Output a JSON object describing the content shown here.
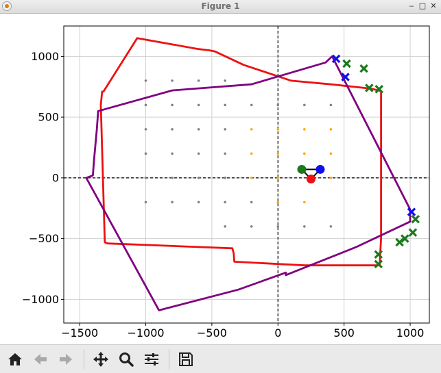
{
  "window": {
    "title": "Figure 1"
  },
  "toolbar": {
    "buttons": [
      {
        "name": "home-button",
        "icon": "home-icon"
      },
      {
        "name": "back-button",
        "icon": "arrow-left-icon"
      },
      {
        "name": "forward-button",
        "icon": "arrow-right-icon"
      },
      {
        "name": "pan-button",
        "icon": "move-icon"
      },
      {
        "name": "zoom-button",
        "icon": "magnifier-icon"
      },
      {
        "name": "configure-subplots-button",
        "icon": "sliders-icon"
      },
      {
        "name": "save-button",
        "icon": "floppy-disk-icon"
      }
    ]
  },
  "chart_data": {
    "type": "scatter",
    "title": "",
    "xlabel": "",
    "ylabel": "",
    "xlim": [
      -1620,
      1145
    ],
    "ylim": [
      -1195,
      1250
    ],
    "x_ticks": [
      -1500,
      -1000,
      -500,
      0,
      500,
      1000
    ],
    "y_ticks": [
      -1000,
      -500,
      0,
      500,
      1000
    ],
    "x_tick_labels": [
      "−1500",
      "−1000",
      "−500",
      "0",
      "500",
      "1000"
    ],
    "y_tick_labels": [
      "−1000",
      "−500",
      "0",
      "500",
      "1000"
    ],
    "grid": true,
    "reference_lines": {
      "x": 0,
      "y": 0,
      "style": "dashed",
      "color": "#000000"
    },
    "colors": {
      "red_path": "#ee1111",
      "purple_path": "#800080",
      "green_marker": "#1a7a1a",
      "blue_marker": "#1010ee",
      "grid_dots": "#808080",
      "orange_dots": "#ffa500"
    },
    "series": [
      {
        "style": "line",
        "color": "#ee1111",
        "points": [
          [
            -1065,
            1150
          ],
          [
            -600,
            1060
          ],
          [
            -520,
            1050
          ],
          [
            -475,
            1040
          ],
          [
            -260,
            930
          ],
          [
            100,
            800
          ],
          [
            400,
            770
          ],
          [
            700,
            735
          ],
          [
            780,
            715
          ],
          [
            780,
            -500
          ],
          [
            770,
            -700
          ],
          [
            770,
            -720
          ],
          [
            200,
            -720
          ],
          [
            -330,
            -690
          ],
          [
            -335,
            -620
          ],
          [
            -345,
            -580
          ],
          [
            -1290,
            -540
          ],
          [
            -1310,
            -530
          ],
          [
            -1340,
            600
          ],
          [
            -1330,
            710
          ],
          [
            -1320,
            710
          ],
          [
            -1065,
            1150
          ]
        ]
      },
      {
        "style": "line",
        "color": "#800080",
        "points": [
          [
            -900,
            -1090
          ],
          [
            -1450,
            0
          ],
          [
            -1400,
            20
          ],
          [
            -1390,
            160
          ],
          [
            -1370,
            400
          ],
          [
            -1360,
            550
          ],
          [
            -800,
            720
          ],
          [
            -200,
            770
          ],
          [
            360,
            950
          ],
          [
            410,
            1000
          ],
          [
            1000,
            -260
          ],
          [
            1000,
            -360
          ],
          [
            590,
            -570
          ],
          [
            60,
            -800
          ],
          [
            60,
            -780
          ],
          [
            -300,
            -920
          ],
          [
            -900,
            -1090
          ]
        ]
      },
      {
        "style": "marker",
        "marker": "x",
        "color": "#1a7a1a",
        "points": [
          [
            520,
            940
          ],
          [
            650,
            900
          ],
          [
            690,
            740
          ],
          [
            765,
            730
          ],
          [
            760,
            -630
          ],
          [
            760,
            -710
          ],
          [
            920,
            -530
          ],
          [
            960,
            -500
          ],
          [
            1020,
            -450
          ],
          [
            1040,
            -340
          ]
        ]
      },
      {
        "style": "marker",
        "marker": "x",
        "color": "#1010ee",
        "points": [
          [
            440,
            980
          ],
          [
            510,
            830
          ],
          [
            1010,
            -280
          ]
        ]
      },
      {
        "style": "marker",
        "marker": "o",
        "color": "#1a7a1a",
        "points": [
          [
            180,
            70
          ]
        ]
      },
      {
        "style": "marker",
        "marker": "o",
        "color": "#1010ee",
        "points": [
          [
            320,
            70
          ]
        ]
      },
      {
        "style": "marker",
        "marker": "o",
        "color": "#ee1111",
        "points": [
          [
            250,
            -10
          ]
        ]
      }
    ],
    "grid_dots_gray": [
      [
        -1000,
        800
      ],
      [
        -800,
        800
      ],
      [
        -600,
        800
      ],
      [
        -400,
        800
      ],
      [
        -1000,
        600
      ],
      [
        -800,
        600
      ],
      [
        -600,
        600
      ],
      [
        -400,
        600
      ],
      [
        -200,
        600
      ],
      [
        0,
        600
      ],
      [
        200,
        600
      ],
      [
        400,
        600
      ],
      [
        -1000,
        400
      ],
      [
        -800,
        400
      ],
      [
        -600,
        400
      ],
      [
        -400,
        400
      ],
      [
        -1000,
        200
      ],
      [
        -800,
        200
      ],
      [
        -600,
        200
      ],
      [
        -400,
        200
      ],
      [
        -1000,
        0
      ],
      [
        -800,
        0
      ],
      [
        -600,
        0
      ],
      [
        -400,
        0
      ],
      [
        -1000,
        -200
      ],
      [
        -800,
        -200
      ],
      [
        -600,
        -200
      ],
      [
        -400,
        -200
      ],
      [
        -200,
        -200
      ],
      [
        -400,
        -400
      ],
      [
        -200,
        -400
      ],
      [
        0,
        -400
      ],
      [
        200,
        -400
      ],
      [
        400,
        -400
      ]
    ],
    "grid_dots_orange": [
      [
        -200,
        400
      ],
      [
        0,
        400
      ],
      [
        200,
        400
      ],
      [
        400,
        400
      ],
      [
        -200,
        200
      ],
      [
        0,
        200
      ],
      [
        200,
        200
      ],
      [
        400,
        200
      ],
      [
        -200,
        0
      ],
      [
        0,
        0
      ],
      [
        400,
        0
      ],
      [
        0,
        -200
      ],
      [
        200,
        -200
      ]
    ]
  }
}
